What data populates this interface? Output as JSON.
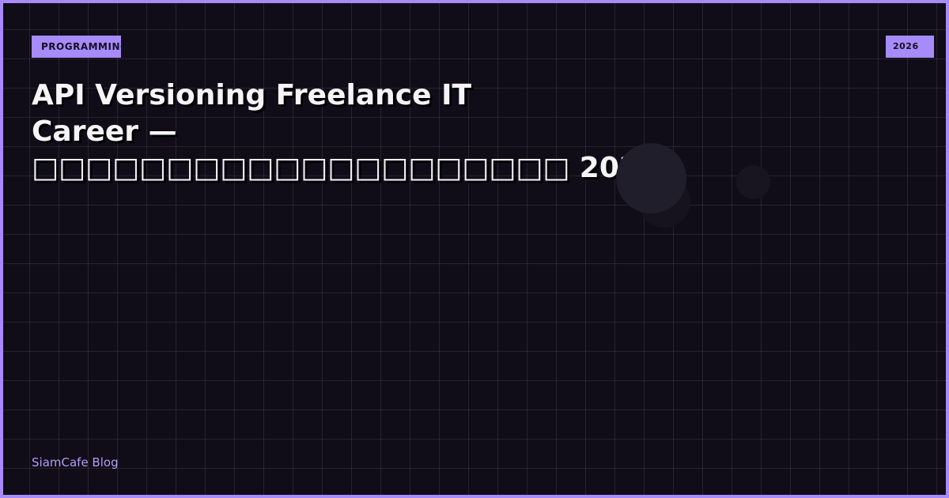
{
  "category_tag": "PROGRAMMING",
  "year_tag": "2026",
  "title": {
    "line1": "API Versioning Freelance IT",
    "line2": "Career — □□□□□□□□□□□□□□□□□□□□ 2026"
  },
  "footer": {
    "brand": "SiamCafe Blog"
  },
  "colors": {
    "accent": "#a78bfa",
    "background": "#100d19",
    "title": "#f5f5f7"
  }
}
